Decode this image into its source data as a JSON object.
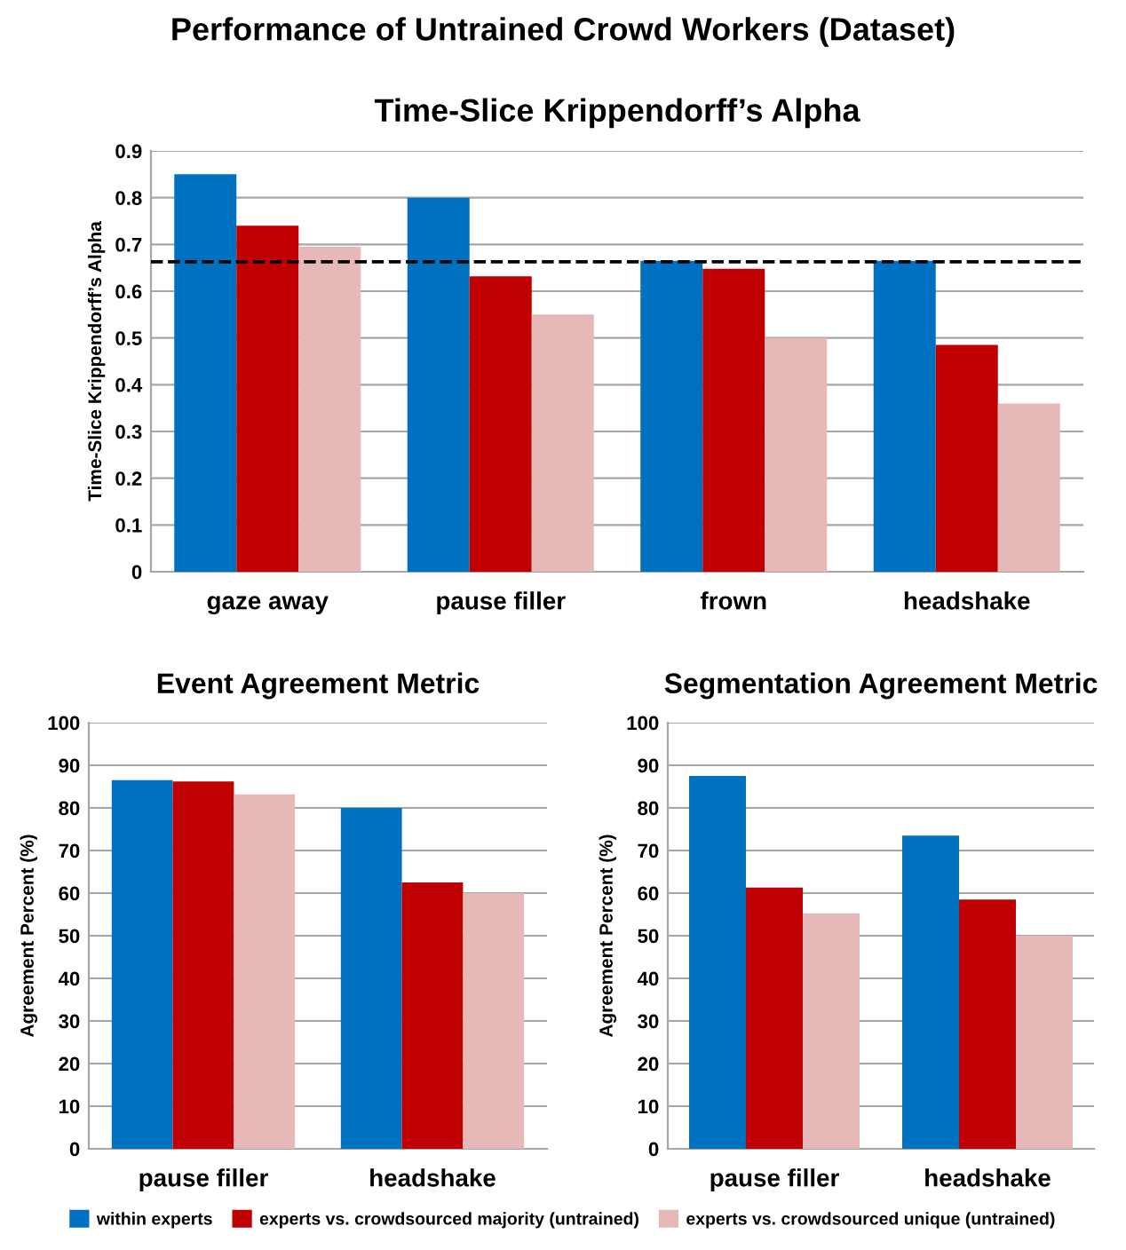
{
  "chart_data": [
    {
      "type": "bar",
      "title": "Time-Slice Krippendorff’s Alpha",
      "ylabel": "Time-Slice Krippendorff’s Alpha",
      "annotations": [
        "Performance of Untrained Crowd Workers (Dataset)"
      ],
      "categories": [
        "gaze away",
        "pause filler",
        "frown",
        "headshake"
      ],
      "series": [
        {
          "name": "within experts",
          "color": "#0070c0",
          "values": [
            0.85,
            0.8,
            0.665,
            0.665
          ]
        },
        {
          "name": "experts vs. crowdsourced majority (untrained)",
          "color": "#c00000",
          "values": [
            0.74,
            0.632,
            0.648,
            0.485
          ]
        },
        {
          "name": "experts vs. crowdsourced unique (untrained)",
          "color": "#e6b9b8",
          "values": [
            0.695,
            0.55,
            0.5,
            0.36
          ]
        }
      ],
      "ylim": [
        0,
        0.9
      ],
      "yticks": [
        {
          "value": 0,
          "label": "0"
        },
        0.1,
        0.2,
        0.3,
        0.4,
        0.5,
        0.6,
        0.7,
        0.8,
        0.9
      ],
      "ref_lines": [
        {
          "axis": "y",
          "value": 0.663,
          "color": "#000000",
          "line_style": "dashed"
        }
      ],
      "grid": "y",
      "legend": "bottom"
    },
    {
      "type": "bar",
      "title": "Event Agreement Metric",
      "ylabel": "Agreement Percent (%)",
      "categories": [
        "pause filler",
        "headshake"
      ],
      "series": [
        {
          "color": "#0070c0",
          "values": [
            86.5,
            80
          ]
        },
        {
          "color": "#c00000",
          "values": [
            86.2,
            62.5
          ]
        },
        {
          "color": "#e6b9b8",
          "values": [
            83.2,
            60
          ]
        }
      ],
      "ylim": [
        0,
        100
      ],
      "yticks": [
        0,
        10,
        20,
        30,
        40,
        50,
        60,
        70,
        80,
        90,
        100
      ],
      "grid": "y"
    },
    {
      "type": "bar",
      "title": "Segmentation Agreement Metric",
      "ylabel": "Agreement Percent (%)",
      "categories": [
        "pause filler",
        "headshake"
      ],
      "series": [
        {
          "color": "#0070c0",
          "values": [
            87.5,
            73.5
          ]
        },
        {
          "color": "#c00000",
          "values": [
            61.3,
            58.5
          ]
        },
        {
          "color": "#e6b9b8",
          "values": [
            55.2,
            50
          ]
        }
      ],
      "ylim": [
        0,
        100
      ],
      "yticks": [
        0,
        10,
        20,
        30,
        40,
        50,
        60,
        70,
        80,
        90,
        100
      ],
      "grid": "y"
    }
  ]
}
